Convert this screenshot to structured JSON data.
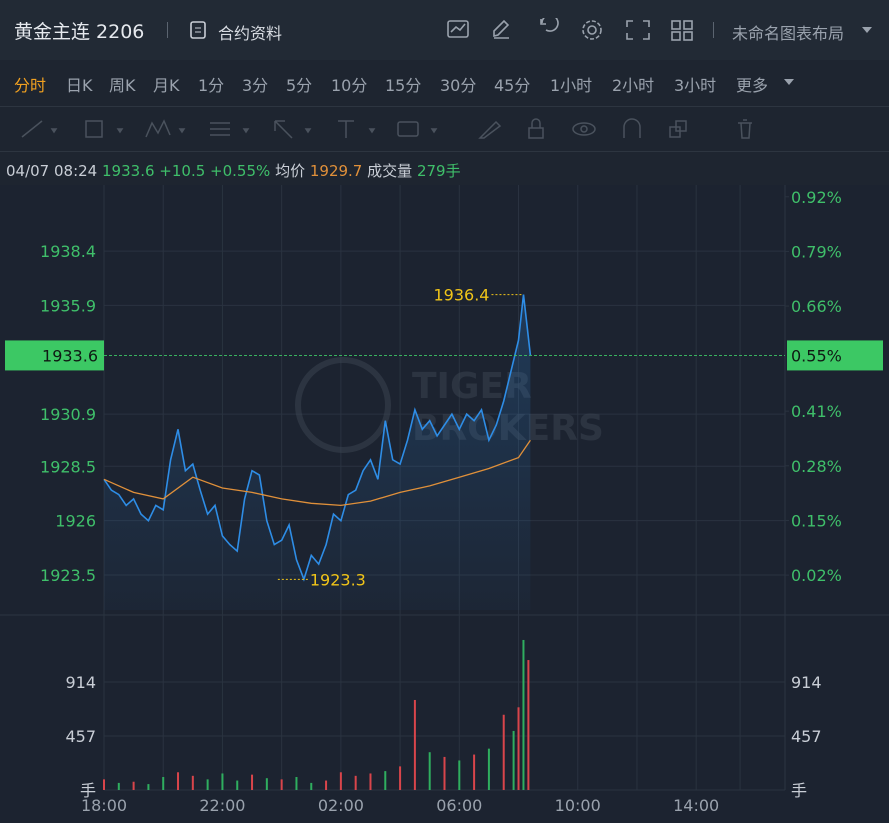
{
  "header": {
    "title": "黄金主连 2206",
    "info": "合约资料",
    "layout_name": "未命名图表布局"
  },
  "periods": [
    "分时",
    "日K",
    "周K",
    "月K",
    "1分",
    "3分",
    "5分",
    "10分",
    "15分",
    "30分",
    "45分",
    "1小时",
    "2小时",
    "3小时",
    "更多"
  ],
  "active_period": 0,
  "quote": {
    "datetime": "04/07 08:24",
    "price": "1933.6",
    "change": "+10.5",
    "change_pct": "+0.55%",
    "avg_label": "均价",
    "avg": "1929.7",
    "volume_label": "成交量",
    "volume": "279手"
  },
  "chart": {
    "type": "line",
    "watermark": [
      "TIGER",
      "BROKERS"
    ],
    "xlim": [
      "18:00",
      "17:00"
    ],
    "xticks": [
      "18:00",
      "22:00",
      "02:00",
      "06:00",
      "10:00",
      "14:00"
    ],
    "ylim": [
      1921.89,
      1941.44
    ],
    "yticks": [
      1923.5,
      1926.0,
      1928.5,
      1930.9,
      1935.9,
      1938.4
    ],
    "y2lim": [
      -0.063,
      0.948
    ],
    "y2ticks": [
      {
        "value": 0.02,
        "label": "0.02%"
      },
      {
        "value": 0.15,
        "label": "0.15%"
      },
      {
        "value": 0.28,
        "label": "0.28%"
      },
      {
        "value": 0.41,
        "label": "0.41%"
      },
      {
        "value": 0.66,
        "label": "0.66%"
      },
      {
        "value": 0.79,
        "label": "0.79%"
      },
      {
        "value": 0.92,
        "label": "0.92%"
      }
    ],
    "last": {
      "value": 1933.6,
      "label": "1933.6",
      "pct_label": "0.55%"
    },
    "max": {
      "value": 1936.4,
      "label": "1936.4",
      "x": "08:10"
    },
    "min": {
      "value": 1923.3,
      "label": "1923.3",
      "x": "00:45"
    },
    "series": [
      {
        "name": "price",
        "color": "#2e8de6",
        "x": [
          "18:00",
          "18:15",
          "18:30",
          "18:45",
          "19:00",
          "19:15",
          "19:30",
          "19:45",
          "20:00",
          "20:15",
          "20:30",
          "20:45",
          "21:00",
          "21:15",
          "21:30",
          "21:45",
          "22:00",
          "22:15",
          "22:30",
          "22:45",
          "23:00",
          "23:15",
          "23:30",
          "23:45",
          "00:00",
          "00:15",
          "00:30",
          "00:45",
          "01:00",
          "01:15",
          "01:30",
          "01:45",
          "02:00",
          "02:15",
          "02:30",
          "02:45",
          "03:00",
          "03:15",
          "03:30",
          "03:45",
          "04:00",
          "04:15",
          "04:30",
          "04:45",
          "05:00",
          "05:15",
          "05:30",
          "05:45",
          "06:00",
          "06:15",
          "06:30",
          "06:45",
          "07:00",
          "07:15",
          "07:30",
          "07:45",
          "08:00",
          "08:10",
          "08:24"
        ],
        "values": [
          1927.9,
          1927.4,
          1927.2,
          1926.7,
          1927.0,
          1926.3,
          1926.0,
          1926.7,
          1926.5,
          1928.8,
          1930.2,
          1928.3,
          1928.6,
          1927.4,
          1926.3,
          1926.7,
          1925.3,
          1924.9,
          1924.6,
          1927.0,
          1928.3,
          1928.1,
          1926.0,
          1924.9,
          1925.1,
          1925.8,
          1924.2,
          1923.3,
          1924.4,
          1924.0,
          1924.9,
          1926.3,
          1926.0,
          1927.2,
          1927.4,
          1928.3,
          1928.8,
          1927.9,
          1930.6,
          1928.8,
          1928.6,
          1929.7,
          1931.1,
          1930.2,
          1930.6,
          1929.9,
          1930.4,
          1930.9,
          1930.2,
          1930.9,
          1930.6,
          1931.1,
          1929.7,
          1930.4,
          1931.5,
          1932.9,
          1934.3,
          1936.4,
          1933.6
        ]
      },
      {
        "name": "avg",
        "color": "#e0903a",
        "x": [
          "18:00",
          "19:00",
          "20:00",
          "21:00",
          "22:00",
          "23:00",
          "00:00",
          "01:00",
          "02:00",
          "03:00",
          "04:00",
          "05:00",
          "06:00",
          "07:00",
          "08:00",
          "08:24"
        ],
        "values": [
          1927.9,
          1927.3,
          1927.0,
          1928.0,
          1927.5,
          1927.3,
          1927.0,
          1926.8,
          1926.7,
          1926.9,
          1927.3,
          1927.6,
          1928.0,
          1928.4,
          1928.9,
          1929.7
        ]
      }
    ],
    "volume": {
      "ylim": [
        0,
        1439
      ],
      "yticks": [
        {
          "value": 0,
          "label": "手"
        },
        457,
        914
      ],
      "up_color": "#d9454b",
      "down_color": "#2fae5f",
      "x": [
        "18:00",
        "18:30",
        "19:00",
        "19:30",
        "20:00",
        "20:30",
        "21:00",
        "21:30",
        "22:00",
        "22:30",
        "23:00",
        "23:30",
        "00:00",
        "00:30",
        "01:00",
        "01:30",
        "02:00",
        "02:30",
        "03:00",
        "03:30",
        "04:00",
        "04:30",
        "05:00",
        "05:30",
        "06:00",
        "06:30",
        "07:00",
        "07:30",
        "07:50",
        "08:00",
        "08:10",
        "08:20"
      ],
      "values": [
        90,
        60,
        70,
        50,
        110,
        150,
        120,
        90,
        140,
        80,
        130,
        100,
        90,
        110,
        60,
        80,
        150,
        120,
        140,
        160,
        200,
        762,
        320,
        280,
        250,
        300,
        350,
        637,
        500,
        700,
        1270,
        1100
      ],
      "up": [
        true,
        false,
        true,
        false,
        false,
        true,
        true,
        false,
        false,
        false,
        true,
        false,
        true,
        false,
        false,
        true,
        true,
        true,
        true,
        false,
        true,
        true,
        false,
        true,
        false,
        true,
        false,
        true,
        false,
        true,
        false,
        true
      ]
    }
  }
}
